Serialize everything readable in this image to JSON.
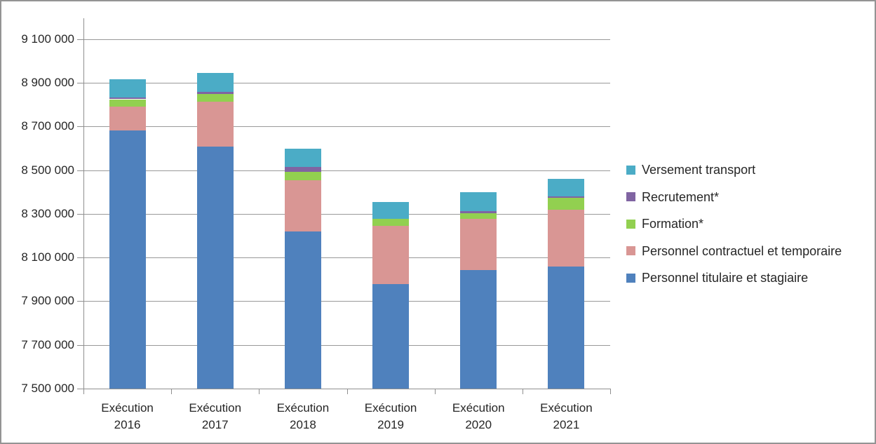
{
  "frame": {
    "background": "#FFFFFF",
    "border_color": "#949494"
  },
  "chart_data": {
    "type": "bar",
    "stacked": true,
    "title": "",
    "xlabel": "",
    "ylabel": "",
    "grid": true,
    "axis_color": "#8F8F8F",
    "gridline_color": "#999999",
    "text_color": "#262626",
    "categories": [
      "Exécution 2016",
      "Exécution 2017",
      "Exécution 2018",
      "Exécution 2019",
      "Exécution 2020",
      "Exécution 2021"
    ],
    "series": [
      {
        "name": "Personnel titulaire et stagiaire",
        "color": "#4F81BD",
        "values": [
          8681000,
          8607000,
          8221000,
          7978000,
          8042000,
          8058000
        ]
      },
      {
        "name": "Personnel contractuel et temporaire",
        "color": "#D99694",
        "values": [
          109000,
          206000,
          233000,
          267000,
          236000,
          262000
        ]
      },
      {
        "name": "Formation*",
        "color": "#92D050",
        "values": [
          35000,
          36000,
          39000,
          33000,
          26000,
          54000
        ]
      },
      {
        "name": "Recrutement*",
        "color": "#8064A2",
        "values": [
          8000,
          9000,
          23000,
          0,
          10000,
          7000
        ]
      },
      {
        "name": "Versement transport",
        "color": "#4BACC6",
        "values": [
          84000,
          86000,
          84000,
          77000,
          84000,
          81000
        ]
      }
    ],
    "totals": [
      8917000,
      8944000,
      8600000,
      8355000,
      8398000,
      8462000
    ],
    "ylim": [
      7500000,
      9196000
    ],
    "yticks": [
      7500000,
      7700000,
      7900000,
      8100000,
      8300000,
      8500000,
      8700000,
      8900000,
      9100000
    ],
    "ytick_labels": [
      "7 500 000",
      "7 700 000",
      "7 900 000",
      "8 100 000",
      "8 300 000",
      "8 500 000",
      "8 700 000",
      "8 900 000",
      "9 100 000"
    ],
    "legend": {
      "position": "right",
      "entries": [
        {
          "label": "Versement transport",
          "color": "#4BACC6"
        },
        {
          "label": "Recrutement*",
          "color": "#8064A2"
        },
        {
          "label": "Formation*",
          "color": "#92D050"
        },
        {
          "label": "Personnel contractuel et temporaire",
          "color": "#D99694"
        },
        {
          "label": "Personnel titulaire et stagiaire",
          "color": "#4F81BD"
        }
      ]
    }
  }
}
